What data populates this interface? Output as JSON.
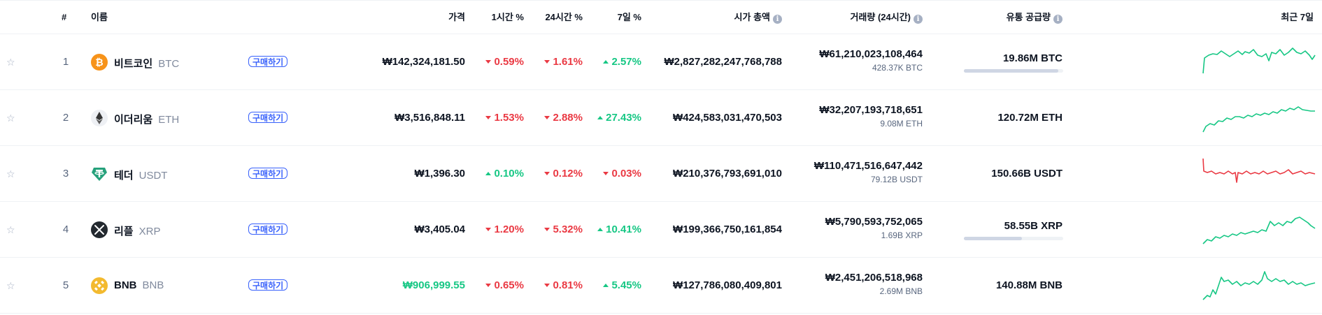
{
  "header": {
    "rank": "#",
    "name": "이름",
    "price": "가격",
    "h1": "1시간 %",
    "h24": "24시간 %",
    "d7": "7일 %",
    "market_cap": "시가 총액",
    "volume": "거래량 (24시간)",
    "supply": "유통 공급량",
    "last7": "최근 7일",
    "info_glyph": "i"
  },
  "buy_label": "구매하기",
  "colors": {
    "up": "#16c784",
    "down": "#ea3943",
    "accent": "#3861fb"
  },
  "coins": [
    {
      "rank": "1",
      "name": "비트코인",
      "symbol": "BTC",
      "icon": "bitcoin-icon",
      "price": "₩142,324,181.50",
      "h1": "0.59%",
      "h1_dir": "down",
      "h24": "1.61%",
      "h24_dir": "down",
      "d7": "2.57%",
      "d7_dir": "up",
      "market_cap": "₩2,827,282,247,768,788",
      "volume": "₩61,210,023,108,464",
      "volume_sub": "428.37K BTC",
      "supply": "19.86M BTC",
      "supply_fraction": 0.95,
      "trend": "up"
    },
    {
      "rank": "2",
      "name": "이더리움",
      "symbol": "ETH",
      "icon": "ethereum-icon",
      "price": "₩3,516,848.11",
      "h1": "1.53%",
      "h1_dir": "down",
      "h24": "2.88%",
      "h24_dir": "down",
      "d7": "27.43%",
      "d7_dir": "up",
      "market_cap": "₩424,583,031,470,503",
      "volume": "₩32,207,193,718,651",
      "volume_sub": "9.08M ETH",
      "supply": "120.72M ETH",
      "supply_fraction": null,
      "trend": "up"
    },
    {
      "rank": "3",
      "name": "테더",
      "symbol": "USDT",
      "icon": "tether-icon",
      "price": "₩1,396.30",
      "h1": "0.10%",
      "h1_dir": "up",
      "h24": "0.12%",
      "h24_dir": "down",
      "d7": "0.03%",
      "d7_dir": "down",
      "market_cap": "₩210,376,793,691,010",
      "volume": "₩110,471,516,647,442",
      "volume_sub": "79.12B USDT",
      "supply": "150.66B USDT",
      "supply_fraction": null,
      "trend": "down"
    },
    {
      "rank": "4",
      "name": "리플",
      "symbol": "XRP",
      "icon": "xrp-icon",
      "price": "₩3,405.04",
      "h1": "1.20%",
      "h1_dir": "down",
      "h24": "5.32%",
      "h24_dir": "down",
      "d7": "10.41%",
      "d7_dir": "up",
      "market_cap": "₩199,366,750,161,854",
      "volume": "₩5,790,593,752,065",
      "volume_sub": "1.69B XRP",
      "supply": "58.55B XRP",
      "supply_fraction": 0.585,
      "trend": "up"
    },
    {
      "rank": "5",
      "name": "BNB",
      "symbol": "BNB",
      "icon": "bnb-icon",
      "price": "₩906,999.55",
      "price_color": "#16c784",
      "h1": "0.65%",
      "h1_dir": "down",
      "h24": "0.81%",
      "h24_dir": "down",
      "d7": "5.45%",
      "d7_dir": "up",
      "market_cap": "₩127,786,080,409,801",
      "volume": "₩2,451,206,518,968",
      "volume_sub": "2.69M BNB",
      "supply": "140.88M BNB",
      "supply_fraction": null,
      "trend": "up"
    }
  ]
}
